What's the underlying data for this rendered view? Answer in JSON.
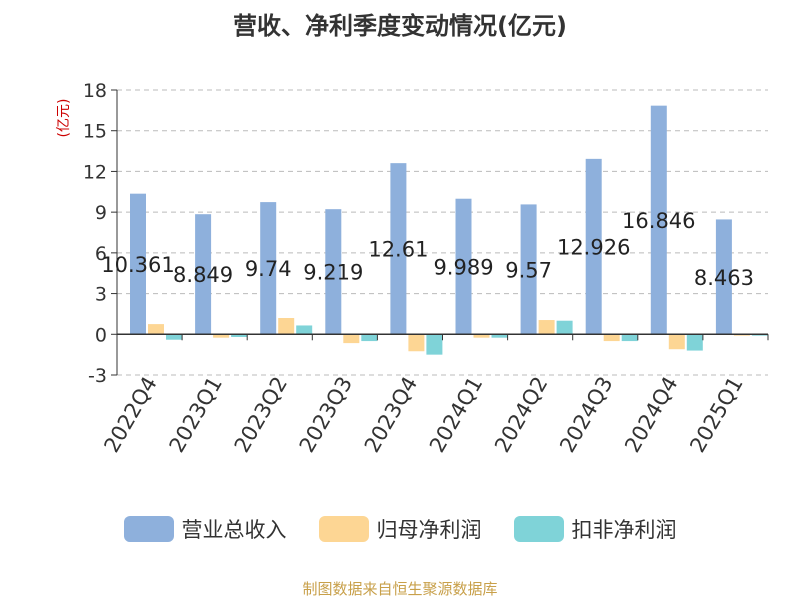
{
  "title": "营收、净利季度变动情况(亿元)",
  "source": "制图数据来自恒生聚源数据库",
  "chart_data": {
    "type": "bar",
    "title": "营收、净利季度变动情况(亿元)",
    "ylabel": "(亿元)",
    "ylim": [
      -3,
      18
    ],
    "yticks": [
      -3,
      0,
      3,
      6,
      9,
      12,
      15,
      18
    ],
    "grid": true,
    "legend": "bottom",
    "categories": [
      "2022Q4",
      "2023Q1",
      "2023Q2",
      "2023Q3",
      "2023Q4",
      "2024Q1",
      "2024Q2",
      "2024Q3",
      "2024Q4",
      "2025Q1"
    ],
    "series": [
      {
        "name": "营业总收入",
        "color": "#8eb0dc",
        "values": [
          10.361,
          8.849,
          9.74,
          9.219,
          12.61,
          9.989,
          9.57,
          12.926,
          16.846,
          8.463
        ],
        "labels": [
          "10.361",
          "8.849",
          "9.74",
          "9.219",
          "12.61",
          "9.989",
          "9.57",
          "12.926",
          "16.846",
          "8.463"
        ]
      },
      {
        "name": "归母净利润",
        "color": "#fdd694",
        "values": [
          0.75,
          -0.25,
          1.2,
          -0.65,
          -1.25,
          -0.25,
          1.05,
          -0.5,
          -1.1,
          -0.1
        ]
      },
      {
        "name": "扣非净利润",
        "color": "#7fd3d8",
        "values": [
          -0.4,
          -0.2,
          0.65,
          -0.5,
          -1.5,
          -0.25,
          1.0,
          -0.5,
          -1.2,
          -0.1
        ]
      }
    ]
  }
}
